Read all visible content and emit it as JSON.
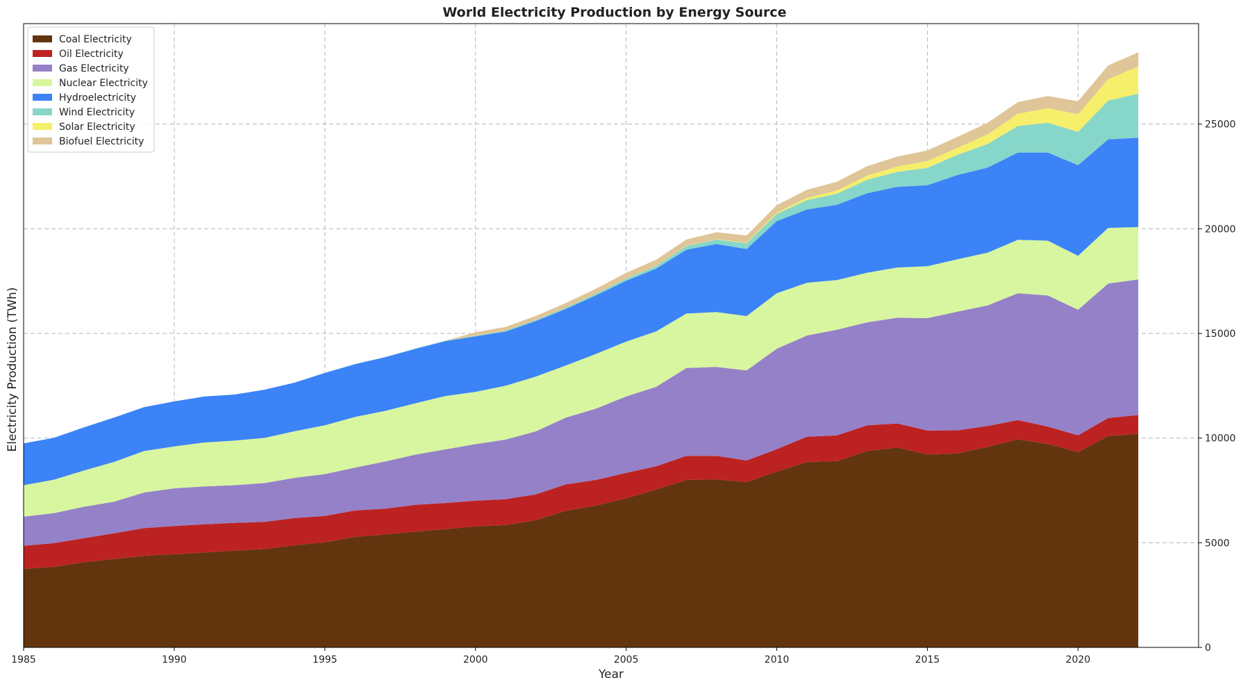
{
  "chart_data": {
    "type": "area",
    "stacked": true,
    "title": "World Electricity Production by Energy Source",
    "xlabel": "Year",
    "ylabel": "Electricity Production (TWh)",
    "xlim": [
      1985,
      2024
    ],
    "ylim": [
      0,
      29800
    ],
    "x_ticks": [
      "1985",
      "1990",
      "1995",
      "2000",
      "2005",
      "2010",
      "2015",
      "2020"
    ],
    "y_ticks": [
      "0",
      "5000",
      "10000",
      "15000",
      "20000",
      "25000"
    ],
    "y_axis_side": "right",
    "grid": true,
    "legend_position": "top-left",
    "x": [
      1985,
      1986,
      1987,
      1988,
      1989,
      1990,
      1991,
      1992,
      1993,
      1994,
      1995,
      1996,
      1997,
      1998,
      1999,
      2000,
      2001,
      2002,
      2003,
      2004,
      2005,
      2006,
      2007,
      2008,
      2009,
      2010,
      2011,
      2012,
      2013,
      2014,
      2015,
      2016,
      2017,
      2018,
      2019,
      2020,
      2021,
      2022
    ],
    "series": [
      {
        "name": "Coal Electricity",
        "color": "#62350f",
        "values": [
          3750,
          3850,
          4070,
          4220,
          4380,
          4450,
          4540,
          4620,
          4700,
          4880,
          5020,
          5280,
          5400,
          5530,
          5650,
          5780,
          5850,
          6080,
          6530,
          6780,
          7120,
          7550,
          8000,
          8020,
          7900,
          8400,
          8850,
          8900,
          9380,
          9550,
          9220,
          9270,
          9580,
          9940,
          9720,
          9330,
          10100,
          10200
        ]
      },
      {
        "name": "Oil Electricity",
        "color": "#bd2222",
        "values": [
          1100,
          1130,
          1150,
          1230,
          1320,
          1350,
          1340,
          1330,
          1300,
          1300,
          1260,
          1260,
          1230,
          1280,
          1250,
          1230,
          1230,
          1230,
          1260,
          1220,
          1220,
          1100,
          1150,
          1130,
          1030,
          1070,
          1210,
          1230,
          1230,
          1150,
          1140,
          1100,
          1000,
          920,
          830,
          800,
          860,
          900
        ]
      },
      {
        "name": "Gas Electricity",
        "color": "#9581c8",
        "values": [
          1400,
          1430,
          1500,
          1510,
          1700,
          1800,
          1810,
          1800,
          1850,
          1920,
          2000,
          2050,
          2250,
          2400,
          2560,
          2700,
          2850,
          3010,
          3190,
          3410,
          3650,
          3800,
          4200,
          4250,
          4300,
          4800,
          4840,
          5050,
          4920,
          5050,
          5370,
          5670,
          5760,
          6060,
          6260,
          6000,
          6420,
          6480
        ]
      },
      {
        "name": "Nuclear Electricity",
        "color": "#d8f6a0",
        "values": [
          1500,
          1600,
          1730,
          1900,
          1980,
          2000,
          2100,
          2130,
          2160,
          2230,
          2330,
          2420,
          2420,
          2450,
          2550,
          2500,
          2570,
          2620,
          2490,
          2610,
          2620,
          2650,
          2600,
          2620,
          2600,
          2650,
          2520,
          2370,
          2370,
          2400,
          2480,
          2500,
          2520,
          2550,
          2620,
          2580,
          2660,
          2500
        ]
      },
      {
        "name": "Hydroelectricity",
        "color": "#3b83f6",
        "values": [
          2000,
          2000,
          2060,
          2120,
          2100,
          2150,
          2200,
          2200,
          2300,
          2320,
          2500,
          2520,
          2560,
          2600,
          2620,
          2650,
          2590,
          2650,
          2700,
          2800,
          2900,
          3000,
          3050,
          3250,
          3200,
          3450,
          3500,
          3600,
          3800,
          3850,
          3870,
          4030,
          4060,
          4170,
          4210,
          4330,
          4230,
          4270
        ]
      },
      {
        "name": "Wind Electricity",
        "color": "#87d6ca",
        "values": [
          0,
          0,
          0,
          0,
          0,
          0,
          0,
          0,
          0,
          0,
          10,
          10,
          10,
          15,
          20,
          30,
          40,
          50,
          60,
          80,
          105,
          130,
          170,
          220,
          280,
          340,
          450,
          530,
          640,
          720,
          830,
          960,
          1130,
          1270,
          1420,
          1590,
          1850,
          2100
        ]
      },
      {
        "name": "Solar Electricity",
        "color": "#f5ef6b",
        "values": [
          0,
          0,
          0,
          0,
          0,
          0,
          0,
          0,
          0,
          0,
          0,
          0,
          0,
          0,
          0,
          0,
          0,
          0,
          0,
          0,
          5,
          5,
          10,
          20,
          30,
          60,
          100,
          150,
          200,
          250,
          330,
          340,
          460,
          580,
          700,
          840,
          1030,
          1300
        ]
      },
      {
        "name": "Biofuel Electricity",
        "color": "#dfc597",
        "values": [
          0,
          0,
          0,
          0,
          0,
          0,
          0,
          0,
          0,
          0,
          0,
          0,
          0,
          0,
          0,
          170,
          180,
          200,
          220,
          240,
          270,
          290,
          310,
          320,
          340,
          360,
          390,
          420,
          450,
          480,
          500,
          520,
          550,
          560,
          580,
          620,
          650,
          680
        ]
      }
    ]
  }
}
